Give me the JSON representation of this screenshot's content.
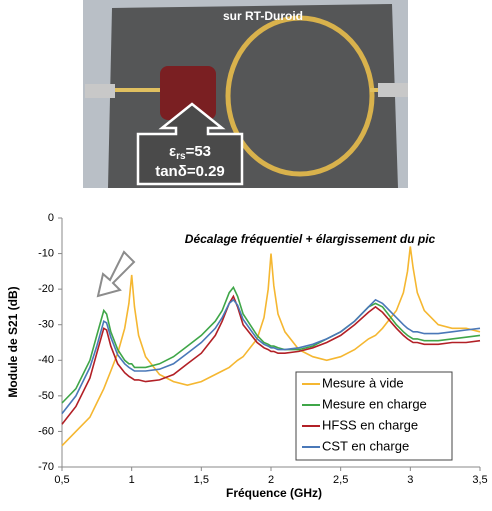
{
  "photo": {
    "caption": "sur RT-Duroid",
    "permittivity_symbol": "ε",
    "permittivity_subscript": "rs",
    "permittivity_value": "=53",
    "loss_tangent": "tanδ=0.29"
  },
  "chart_data": {
    "type": "line",
    "annotation": "Décalage fréquentiel + élargissement du pic",
    "x_label": "Fréquence (GHz)",
    "y_label": "Module de S21 (dB)",
    "xlim": [
      0.5,
      3.5
    ],
    "ylim": [
      -70,
      0
    ],
    "xticks": [
      {
        "value": 0.5,
        "label": "0,5"
      },
      1,
      {
        "value": 1.5,
        "label": "1,5"
      },
      2,
      {
        "value": 2.5,
        "label": "2,5"
      },
      3,
      {
        "value": 3.5,
        "label": "3,5"
      }
    ],
    "yticks": [
      -70,
      -60,
      -50,
      -40,
      -30,
      -20,
      -10,
      0
    ],
    "grid": false,
    "legend": "lower right",
    "x": [
      0.5,
      0.6,
      0.7,
      0.75,
      0.8,
      0.82,
      0.85,
      0.9,
      0.95,
      0.98,
      1.0,
      1.02,
      1.05,
      1.1,
      1.2,
      1.3,
      1.4,
      1.5,
      1.6,
      1.65,
      1.7,
      1.73,
      1.76,
      1.8,
      1.9,
      1.95,
      1.98,
      2.0,
      2.02,
      2.05,
      2.1,
      2.2,
      2.3,
      2.4,
      2.5,
      2.6,
      2.7,
      2.75,
      2.8,
      2.9,
      2.95,
      2.98,
      3.0,
      3.02,
      3.05,
      3.1,
      3.2,
      3.3,
      3.4,
      3.5
    ],
    "series": [
      {
        "name": "Mesure à vide",
        "color": "#f5b731",
        "values": [
          -64,
          -60,
          -56,
          -52,
          -48,
          -46,
          -43,
          -38,
          -31,
          -24,
          -16,
          -25,
          -33,
          -39,
          -44,
          -46,
          -47,
          -46,
          -44,
          -43,
          -42,
          -41,
          -40,
          -39,
          -34,
          -28,
          -20,
          -10,
          -19,
          -27,
          -32,
          -37,
          -39,
          -40,
          -39,
          -37,
          -34,
          -33,
          -31,
          -26,
          -21,
          -15,
          -8,
          -14,
          -21,
          -26,
          -30,
          -31,
          -31,
          -32
        ]
      },
      {
        "name": "Mesure en charge",
        "color": "#3fa648",
        "values": [
          -52,
          -48,
          -40,
          -33,
          -26,
          -27,
          -32,
          -37,
          -40,
          -41,
          -41,
          -42,
          -42,
          -42,
          -41,
          -39,
          -36,
          -33,
          -29,
          -26,
          -21,
          -19.5,
          -22,
          -27,
          -33,
          -35,
          -35.5,
          -36,
          -36,
          -36.5,
          -37,
          -37,
          -36,
          -34,
          -32,
          -29,
          -25,
          -24,
          -25,
          -30,
          -32,
          -33,
          -33.5,
          -34,
          -34,
          -34.5,
          -34.5,
          -34,
          -33.5,
          -33
        ]
      },
      {
        "name": "HFSS en charge",
        "color": "#b22026",
        "values": [
          -58,
          -53,
          -45,
          -38,
          -31,
          -31.5,
          -36,
          -41,
          -43.5,
          -44.5,
          -45,
          -45.5,
          -45.5,
          -46,
          -45.5,
          -44,
          -41,
          -38,
          -33,
          -29,
          -24,
          -22,
          -25,
          -30,
          -35,
          -36.5,
          -37,
          -37.5,
          -37.5,
          -38,
          -38,
          -37.5,
          -36.5,
          -35,
          -33,
          -30,
          -26.5,
          -25,
          -26.5,
          -31,
          -33,
          -34,
          -34.5,
          -35,
          -35,
          -35.5,
          -35.5,
          -35,
          -35,
          -34.5
        ]
      },
      {
        "name": "CST en charge",
        "color": "#4a78b8",
        "values": [
          -55,
          -50,
          -42,
          -36,
          -29,
          -29.5,
          -33.5,
          -38.5,
          -41,
          -42,
          -42.5,
          -43,
          -43,
          -43,
          -42.5,
          -41,
          -38,
          -35,
          -31,
          -28,
          -24,
          -23,
          -24.5,
          -28.5,
          -34,
          -35.5,
          -36,
          -36.5,
          -36.5,
          -37,
          -37,
          -36.5,
          -35.5,
          -34,
          -32,
          -29,
          -25,
          -23,
          -24,
          -28,
          -30,
          -31,
          -31.5,
          -32,
          -32,
          -32.5,
          -32.5,
          -32,
          -31.5,
          -31
        ]
      }
    ]
  }
}
